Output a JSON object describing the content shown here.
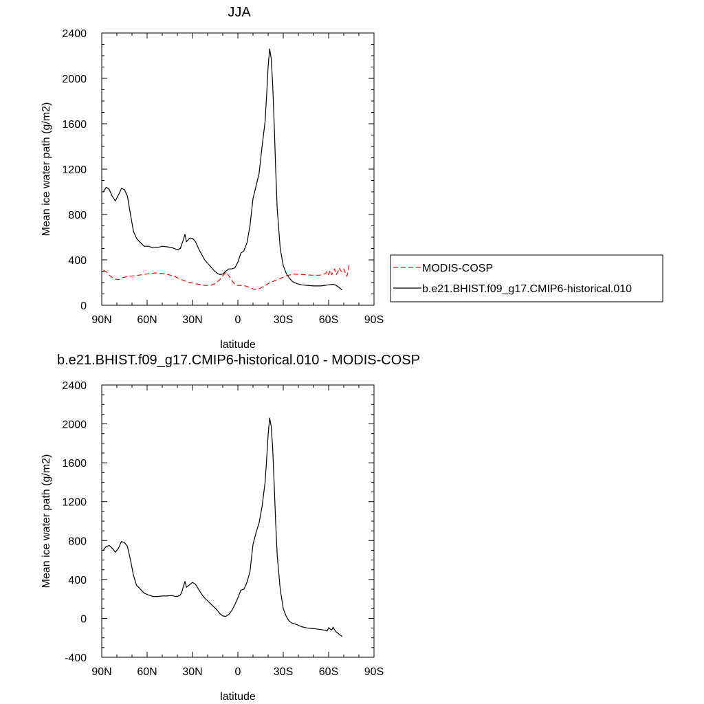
{
  "chart_data": [
    {
      "type": "line",
      "title": "JJA",
      "xlabel": "latitude",
      "ylabel": "Mean ice water path (g/m2)",
      "xlim": [
        90,
        -90
      ],
      "ylim": [
        0,
        2400
      ],
      "xticks": [
        90,
        60,
        30,
        0,
        -30,
        -60,
        -90
      ],
      "xtick_labels": [
        "90N",
        "60N",
        "30N",
        "0",
        "30S",
        "60S",
        "90S"
      ],
      "yticks": [
        0,
        400,
        800,
        1200,
        1600,
        2000,
        2400
      ],
      "ytick_labels": [
        "0",
        "400",
        "800",
        "1200",
        "1600",
        "2000",
        "2400"
      ],
      "grid": false,
      "legend_position": "right",
      "series": [
        {
          "name": "MODIS-COSP",
          "color": "#ff0000",
          "dash": "dashed",
          "x": [
            89,
            87,
            85,
            82,
            79,
            76,
            72,
            68,
            63,
            58,
            54,
            50,
            46,
            42,
            38,
            34,
            30,
            26,
            22,
            18,
            15,
            12,
            10,
            8,
            7,
            5,
            3,
            1,
            -2,
            -5,
            -8,
            -11,
            -14,
            -18,
            -22,
            -27,
            -32,
            -37,
            -43,
            -49,
            -54,
            -58,
            -59,
            -60,
            -61,
            -62,
            -63,
            -64,
            -65,
            -66,
            -67,
            -68,
            -69,
            -70,
            -71,
            -72,
            -73,
            -73.5
          ],
          "y": [
            310,
            295,
            265,
            235,
            225,
            245,
            255,
            260,
            270,
            280,
            285,
            280,
            270,
            255,
            230,
            210,
            195,
            185,
            175,
            175,
            190,
            225,
            260,
            290,
            280,
            240,
            200,
            175,
            175,
            170,
            155,
            140,
            145,
            175,
            205,
            230,
            260,
            275,
            270,
            265,
            265,
            280,
            300,
            270,
            310,
            270,
            290,
            320,
            270,
            290,
            330,
            305,
            295,
            320,
            290,
            255,
            300,
            360
          ]
        },
        {
          "name": "b.e21.BHIST.f09_g17.CMIP6-historical.010",
          "color": "#000000",
          "dash": "solid",
          "x": [
            89,
            87,
            85,
            83,
            81,
            79,
            77,
            75,
            73,
            71,
            69,
            67,
            65,
            62,
            59,
            56,
            53,
            50,
            47,
            44,
            42,
            40,
            38,
            37,
            36,
            35,
            34,
            32,
            30,
            28,
            26,
            24,
            22,
            20,
            18,
            16,
            14,
            12,
            10,
            8,
            6,
            4,
            2,
            0,
            -2,
            -4,
            -6,
            -8,
            -10,
            -12,
            -14,
            -16,
            -18,
            -19,
            -20,
            -21,
            -22,
            -23,
            -24,
            -25,
            -26,
            -28,
            -30,
            -32,
            -34,
            -36,
            -39,
            -42,
            -46,
            -50,
            -55,
            -60,
            -63,
            -65,
            -67,
            -69
          ],
          "y": [
            1000,
            1040,
            1020,
            960,
            920,
            970,
            1030,
            1020,
            960,
            800,
            650,
            590,
            560,
            520,
            520,
            505,
            510,
            520,
            515,
            510,
            500,
            490,
            500,
            540,
            580,
            625,
            560,
            590,
            590,
            560,
            500,
            450,
            400,
            370,
            340,
            310,
            285,
            270,
            275,
            300,
            320,
            320,
            330,
            380,
            460,
            480,
            550,
            700,
            940,
            1050,
            1160,
            1400,
            1620,
            1850,
            2100,
            2260,
            2180,
            1950,
            1600,
            1200,
            850,
            500,
            350,
            280,
            240,
            210,
            190,
            180,
            175,
            170,
            170,
            180,
            185,
            175,
            155,
            135
          ]
        }
      ]
    },
    {
      "type": "line",
      "title": "b.e21.BHIST.f09_g17.CMIP6-historical.010 - MODIS-COSP",
      "xlabel": "latitude",
      "ylabel": "Mean ice water path (g/m2)",
      "xlim": [
        90,
        -90
      ],
      "ylim": [
        -400,
        2400
      ],
      "xticks": [
        90,
        60,
        30,
        0,
        -30,
        -60,
        -90
      ],
      "xtick_labels": [
        "90N",
        "60N",
        "30N",
        "0",
        "30S",
        "60S",
        "90S"
      ],
      "yticks": [
        -400,
        0,
        400,
        800,
        1200,
        1600,
        2000,
        2400
      ],
      "ytick_labels": [
        "-400",
        "0",
        "400",
        "800",
        "1200",
        "1600",
        "2000",
        "2400"
      ],
      "grid": false,
      "series": [
        {
          "color": "#000000",
          "dash": "solid",
          "x": [
            89,
            87,
            85,
            83,
            81,
            79,
            77,
            75,
            73,
            71,
            69,
            67,
            65,
            62,
            59,
            56,
            53,
            50,
            47,
            44,
            42,
            40,
            38,
            37,
            36,
            35,
            34,
            32,
            30,
            28,
            26,
            24,
            22,
            20,
            18,
            16,
            14,
            12,
            10,
            8,
            6,
            4,
            2,
            0,
            -2,
            -4,
            -6,
            -8,
            -10,
            -12,
            -14,
            -16,
            -18,
            -19,
            -20,
            -21,
            -22,
            -23,
            -24,
            -25,
            -26,
            -28,
            -30,
            -32,
            -34,
            -36,
            -39,
            -42,
            -46,
            -50,
            -55,
            -58,
            -59,
            -60,
            -61,
            -62,
            -63,
            -64,
            -65,
            -66,
            -67,
            -68,
            -69
          ],
          "y": [
            700,
            740,
            750,
            720,
            680,
            720,
            790,
            780,
            740,
            600,
            440,
            340,
            310,
            260,
            240,
            225,
            225,
            230,
            230,
            235,
            228,
            225,
            240,
            275,
            330,
            380,
            320,
            345,
            370,
            350,
            300,
            250,
            210,
            180,
            150,
            120,
            90,
            50,
            25,
            20,
            40,
            80,
            140,
            210,
            290,
            300,
            370,
            480,
            760,
            880,
            980,
            1150,
            1400,
            1630,
            1890,
            2060,
            1980,
            1750,
            1380,
            980,
            650,
            300,
            100,
            20,
            -30,
            -50,
            -65,
            -85,
            -100,
            -105,
            -115,
            -125,
            -130,
            -95,
            -110,
            -120,
            -90,
            -120,
            -140,
            -150,
            -165,
            -175,
            -185
          ]
        }
      ]
    }
  ]
}
